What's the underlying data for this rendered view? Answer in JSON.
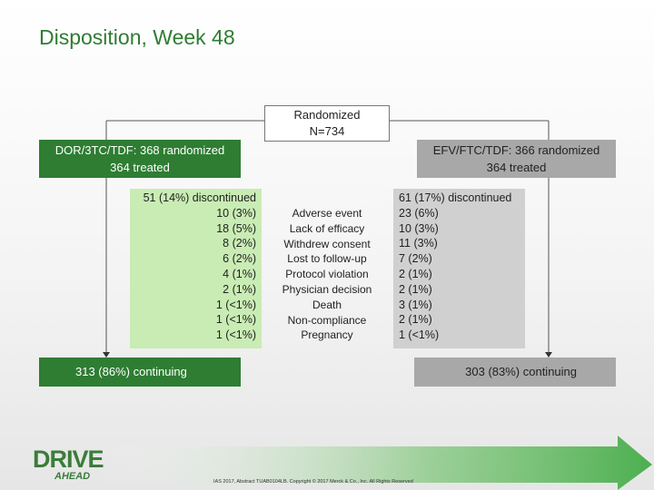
{
  "title": "Disposition, Week 48",
  "randomized": {
    "line1": "Randomized",
    "line2": "N=734"
  },
  "arms": {
    "dor": {
      "header_line1": "DOR/3TC/TDF: 368 randomized",
      "header_line2": "364 treated",
      "discontinued": "51 (14%) discontinued",
      "values": [
        "10 (3%)",
        "18 (5%)",
        "8 (2%)",
        "6 (2%)",
        "4 (1%)",
        "2 (1%)",
        "1 (<1%)",
        "1 (<1%)",
        "1 (<1%)"
      ],
      "continuing": "313 (86%) continuing"
    },
    "efv": {
      "header_line1": "EFV/FTC/TDF: 366 randomized",
      "header_line2": "364 treated",
      "discontinued": "61 (17%) discontinued",
      "values": [
        "23 (6%)",
        "10 (3%)",
        "11 (3%)",
        "7 (2%)",
        "2 (1%)",
        "2 (1%)",
        "3 (1%)",
        "2 (1%)",
        "1 (<1%)"
      ],
      "continuing": "303 (83%) continuing"
    }
  },
  "reasons": [
    "Adverse event",
    "Lack of efficacy",
    "Withdrew consent",
    "Lost to follow-up",
    "Protocol violation",
    "Physician decision",
    "Death",
    "Non-compliance",
    "Pregnancy"
  ],
  "logo": {
    "main": "DRIVE",
    "sub": "AHEAD"
  },
  "footer": "IAS 2017, Abstract TUAB0104LB. Copyright © 2017 Merck & Co., Inc. All Rights Reserved",
  "colors": {
    "dor": "#2e7d32",
    "dor_light": "#c9ecb4",
    "efv": "#a8a8a8",
    "efv_light": "#d0d0d0",
    "arrow": "#4caf50"
  }
}
